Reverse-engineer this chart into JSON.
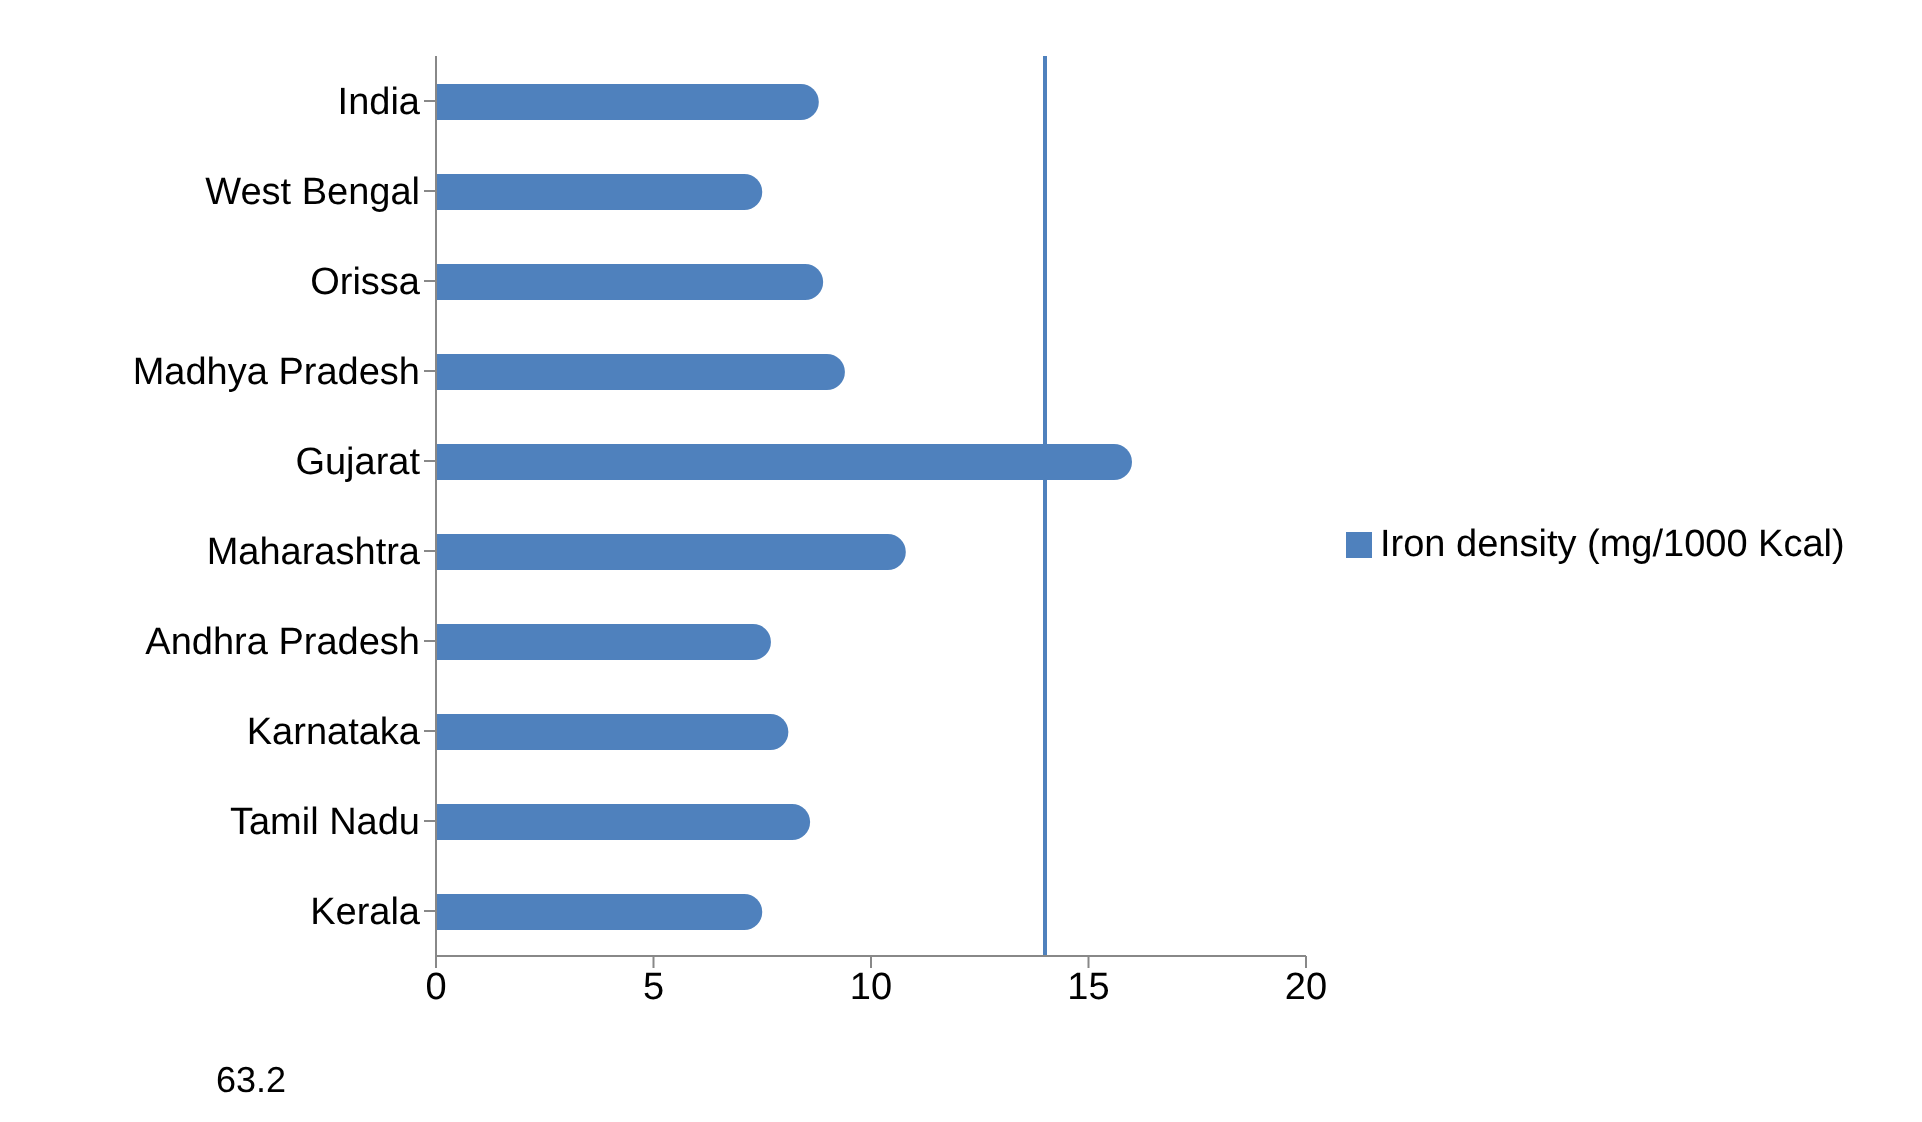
{
  "chart_data": {
    "type": "bar",
    "orientation": "horizontal",
    "categories": [
      "India",
      "West Bengal",
      "Orissa",
      "Madhya Pradesh",
      "Gujarat",
      "Maharashtra",
      "Andhra Pradesh",
      "Karnataka",
      "Tamil Nadu",
      "Kerala"
    ],
    "series": [
      {
        "name": "Iron density (mg/1000 Kcal)",
        "color": "#4f81bd",
        "values": [
          8.8,
          7.5,
          8.9,
          9.4,
          16,
          10.8,
          7.7,
          8.1,
          8.6,
          7.5
        ]
      }
    ],
    "xlim": [
      0,
      20
    ],
    "xticks": [
      0,
      5,
      10,
      15,
      20
    ],
    "grid": false,
    "legend": "right",
    "ref_lines": [
      {
        "axis": "x",
        "value": 14,
        "color": "#4f81bd"
      }
    ],
    "annotations": [
      "63.2"
    ]
  }
}
